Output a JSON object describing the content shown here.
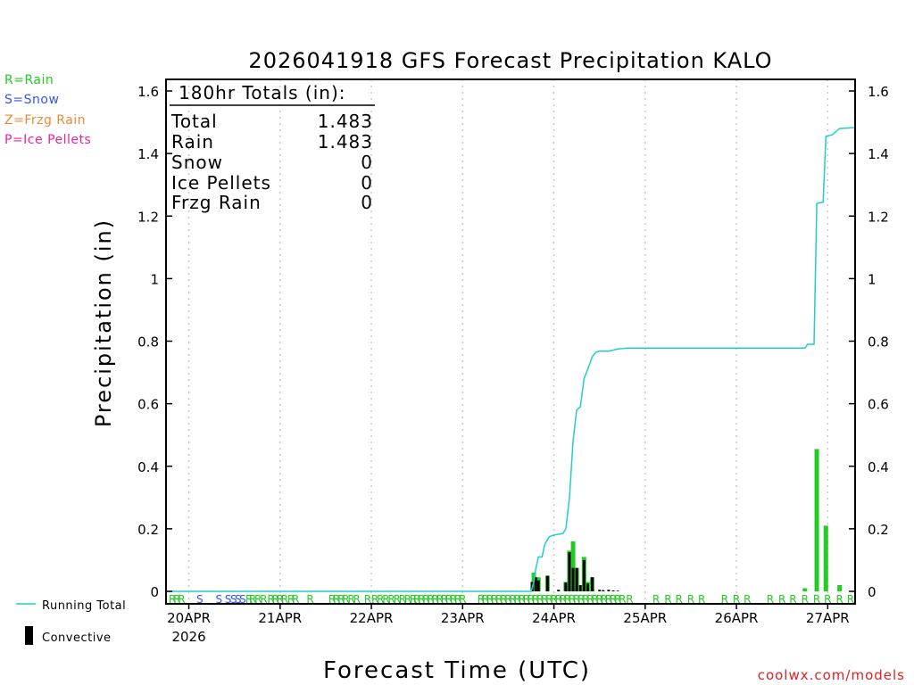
{
  "legend": {
    "rain": "R=Rain",
    "snow": "S=Snow",
    "frzg_rain": "Z=Frzg Rain",
    "ice_pellets": "P=Ice Pellets",
    "running_total": "Running Total",
    "convective": "Convective"
  },
  "colors": {
    "rain": "#22cc22",
    "snow": "#3355ee",
    "frzg_rain": "#ee8833",
    "ice_pellets": "#ee2299",
    "running_total": "#22cccc",
    "convective": "#000000"
  },
  "credit": "coolwx.com/models",
  "totals": {
    "header": "180hr Totals (in):",
    "rows": [
      {
        "label": "Total",
        "value": "1.483"
      },
      {
        "label": "Rain",
        "value": "1.483"
      },
      {
        "label": "Snow",
        "value": "0"
      },
      {
        "label": "Ice Pellets",
        "value": "0"
      },
      {
        "label": "Frzg Rain",
        "value": "0"
      }
    ]
  },
  "chart_data": {
    "type": "bar",
    "title": "2026041918 GFS Forecast Precipitation KALO",
    "xlabel": "Forecast Time (UTC)",
    "ylabel": "Precipitation (in)",
    "ylim": [
      0,
      1.6
    ],
    "yticks": [
      0,
      0.2,
      0.4,
      0.6,
      0.8,
      1,
      1.2,
      1.4,
      1.6
    ],
    "ytick_labels": [
      "0",
      "0.2",
      "0.4",
      "0.6",
      "0.8",
      "1",
      "1.2",
      "1.4",
      "1.6"
    ],
    "x_unit": "days since 20APR 00Z",
    "xlim": [
      -0.25,
      7.3
    ],
    "xticks": [
      {
        "x": 0,
        "label": "20APR",
        "sublabel": "2026"
      },
      {
        "x": 1,
        "label": "21APR",
        "sublabel": ""
      },
      {
        "x": 2,
        "label": "22APR",
        "sublabel": ""
      },
      {
        "x": 3,
        "label": "23APR",
        "sublabel": ""
      },
      {
        "x": 4,
        "label": "24APR",
        "sublabel": ""
      },
      {
        "x": 5,
        "label": "25APR",
        "sublabel": ""
      },
      {
        "x": 6,
        "label": "26APR",
        "sublabel": ""
      },
      {
        "x": 7,
        "label": "27APR",
        "sublabel": ""
      }
    ],
    "grid": true,
    "running_total": {
      "name": "Running Total",
      "points": [
        [
          -0.25,
          0
        ],
        [
          3.75,
          0
        ],
        [
          3.78,
          0.03
        ],
        [
          3.8,
          0.07
        ],
        [
          3.83,
          0.11
        ],
        [
          3.87,
          0.11
        ],
        [
          3.9,
          0.15
        ],
        [
          3.95,
          0.175
        ],
        [
          4.0,
          0.18
        ],
        [
          4.1,
          0.185
        ],
        [
          4.13,
          0.2
        ],
        [
          4.17,
          0.3
        ],
        [
          4.21,
          0.48
        ],
        [
          4.25,
          0.58
        ],
        [
          4.29,
          0.59
        ],
        [
          4.33,
          0.68
        ],
        [
          4.37,
          0.71
        ],
        [
          4.42,
          0.75
        ],
        [
          4.46,
          0.765
        ],
        [
          4.5,
          0.768
        ],
        [
          4.6,
          0.768
        ],
        [
          4.7,
          0.775
        ],
        [
          4.8,
          0.778
        ],
        [
          5.0,
          0.778
        ],
        [
          6.5,
          0.778
        ],
        [
          6.75,
          0.778
        ],
        [
          6.78,
          0.79
        ],
        [
          6.85,
          0.79
        ],
        [
          6.88,
          1.24
        ],
        [
          6.95,
          1.245
        ],
        [
          6.98,
          1.455
        ],
        [
          7.05,
          1.46
        ],
        [
          7.13,
          1.48
        ],
        [
          7.3,
          1.483
        ]
      ]
    },
    "series": [
      {
        "name": "Rain",
        "bars": [
          [
            3.78,
            0.06
          ],
          [
            3.8,
            0.035
          ],
          [
            3.83,
            0.045
          ],
          [
            3.93,
            0.05
          ],
          [
            4.13,
            0.03
          ],
          [
            4.17,
            0.13
          ],
          [
            4.21,
            0.16
          ],
          [
            4.25,
            0.075
          ],
          [
            4.33,
            0.11
          ],
          [
            4.37,
            0.03
          ],
          [
            4.42,
            0.045
          ],
          [
            6.75,
            0.01
          ],
          [
            6.88,
            0.455
          ],
          [
            6.98,
            0.21
          ],
          [
            7.13,
            0.02
          ]
        ]
      },
      {
        "name": "Convective",
        "bars": [
          [
            3.76,
            0.03
          ],
          [
            3.8,
            0.045
          ],
          [
            3.83,
            0.035
          ],
          [
            3.93,
            0.05
          ],
          [
            4.05,
            0.005
          ],
          [
            4.13,
            0.028
          ],
          [
            4.17,
            0.125
          ],
          [
            4.21,
            0.075
          ],
          [
            4.25,
            0.075
          ],
          [
            4.29,
            0.02
          ],
          [
            4.33,
            0.1
          ],
          [
            4.37,
            0.025
          ],
          [
            4.42,
            0.045
          ],
          [
            4.5,
            0.005
          ],
          [
            4.54,
            0.004
          ],
          [
            4.6,
            0.005
          ],
          [
            4.65,
            0.003
          ],
          [
            4.7,
            0.002
          ]
        ]
      }
    ],
    "ptype_markers": [
      {
        "x": -0.18,
        "t": "R"
      },
      {
        "x": -0.13,
        "t": "R"
      },
      {
        "x": -0.08,
        "t": "R"
      },
      {
        "x": 0.12,
        "t": "S"
      },
      {
        "x": 0.33,
        "t": "S"
      },
      {
        "x": 0.43,
        "t": "S"
      },
      {
        "x": 0.49,
        "t": "S"
      },
      {
        "x": 0.54,
        "t": "S"
      },
      {
        "x": 0.59,
        "t": "S"
      },
      {
        "x": 0.66,
        "t": "R"
      },
      {
        "x": 0.7,
        "t": "R"
      },
      {
        "x": 0.76,
        "t": "R"
      },
      {
        "x": 0.82,
        "t": "R"
      },
      {
        "x": 0.9,
        "t": "R"
      },
      {
        "x": 0.95,
        "t": "R"
      },
      {
        "x": 1.0,
        "t": "R"
      },
      {
        "x": 1.05,
        "t": "R"
      },
      {
        "x": 1.12,
        "t": "R"
      },
      {
        "x": 1.17,
        "t": "R"
      },
      {
        "x": 1.33,
        "t": "R"
      },
      {
        "x": 1.57,
        "t": "R"
      },
      {
        "x": 1.62,
        "t": "R"
      },
      {
        "x": 1.67,
        "t": "R"
      },
      {
        "x": 1.72,
        "t": "R"
      },
      {
        "x": 1.78,
        "t": "R"
      },
      {
        "x": 1.84,
        "t": "R"
      },
      {
        "x": 1.96,
        "t": "R"
      },
      {
        "x": 2.04,
        "t": "R"
      },
      {
        "x": 2.1,
        "t": "R"
      },
      {
        "x": 2.16,
        "t": "R"
      },
      {
        "x": 2.22,
        "t": "R"
      },
      {
        "x": 2.28,
        "t": "R"
      },
      {
        "x": 2.34,
        "t": "R"
      },
      {
        "x": 2.4,
        "t": "R"
      },
      {
        "x": 2.46,
        "t": "R"
      },
      {
        "x": 2.5,
        "t": "R"
      },
      {
        "x": 2.55,
        "t": "R"
      },
      {
        "x": 2.6,
        "t": "R"
      },
      {
        "x": 2.65,
        "t": "R"
      },
      {
        "x": 2.7,
        "t": "R"
      },
      {
        "x": 2.75,
        "t": "R"
      },
      {
        "x": 2.8,
        "t": "R"
      },
      {
        "x": 2.85,
        "t": "R"
      },
      {
        "x": 2.9,
        "t": "R"
      },
      {
        "x": 2.95,
        "t": "R"
      },
      {
        "x": 3.0,
        "t": "R"
      },
      {
        "x": 3.2,
        "t": "R"
      },
      {
        "x": 3.25,
        "t": "R"
      },
      {
        "x": 3.3,
        "t": "R"
      },
      {
        "x": 3.35,
        "t": "R"
      },
      {
        "x": 3.4,
        "t": "R"
      },
      {
        "x": 3.45,
        "t": "R"
      },
      {
        "x": 3.5,
        "t": "R"
      },
      {
        "x": 3.55,
        "t": "R"
      },
      {
        "x": 3.6,
        "t": "R"
      },
      {
        "x": 3.65,
        "t": "R"
      },
      {
        "x": 3.7,
        "t": "R"
      },
      {
        "x": 3.75,
        "t": "R"
      },
      {
        "x": 3.8,
        "t": "R"
      },
      {
        "x": 3.85,
        "t": "R"
      },
      {
        "x": 3.9,
        "t": "R"
      },
      {
        "x": 3.95,
        "t": "R"
      },
      {
        "x": 4.0,
        "t": "R"
      },
      {
        "x": 4.05,
        "t": "R"
      },
      {
        "x": 4.1,
        "t": "R"
      },
      {
        "x": 4.15,
        "t": "R"
      },
      {
        "x": 4.2,
        "t": "R"
      },
      {
        "x": 4.25,
        "t": "R"
      },
      {
        "x": 4.3,
        "t": "R"
      },
      {
        "x": 4.35,
        "t": "R"
      },
      {
        "x": 4.4,
        "t": "R"
      },
      {
        "x": 4.45,
        "t": "R"
      },
      {
        "x": 4.5,
        "t": "R"
      },
      {
        "x": 4.55,
        "t": "R"
      },
      {
        "x": 4.6,
        "t": "R"
      },
      {
        "x": 4.65,
        "t": "R"
      },
      {
        "x": 4.7,
        "t": "R"
      },
      {
        "x": 4.75,
        "t": "R"
      },
      {
        "x": 4.83,
        "t": "R"
      },
      {
        "x": 5.12,
        "t": "R"
      },
      {
        "x": 5.25,
        "t": "R"
      },
      {
        "x": 5.37,
        "t": "R"
      },
      {
        "x": 5.5,
        "t": "R"
      },
      {
        "x": 5.62,
        "t": "R"
      },
      {
        "x": 5.87,
        "t": "R"
      },
      {
        "x": 6.0,
        "t": "R"
      },
      {
        "x": 6.12,
        "t": "R"
      },
      {
        "x": 6.37,
        "t": "R"
      },
      {
        "x": 6.5,
        "t": "R"
      },
      {
        "x": 6.62,
        "t": "R"
      },
      {
        "x": 6.75,
        "t": "R"
      },
      {
        "x": 6.88,
        "t": "R"
      },
      {
        "x": 7.0,
        "t": "R"
      },
      {
        "x": 7.13,
        "t": "R"
      },
      {
        "x": 7.25,
        "t": "R"
      }
    ]
  }
}
